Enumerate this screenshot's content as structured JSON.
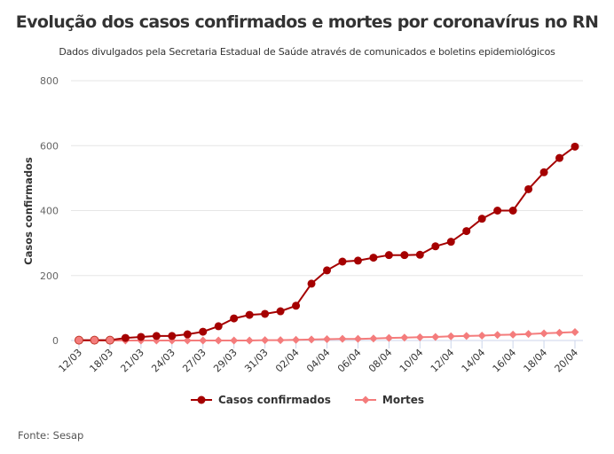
{
  "chart_data": {
    "type": "line",
    "title": "Evolução dos casos confirmados e mortes por coronavírus no RN",
    "subtitle": "Dados divulgados pela Secretaria Estadual de Saúde através de comunicados e boletins epidemiológicos",
    "xlabel": "",
    "ylabel": "Casos confirmados",
    "ylim": [
      0,
      800
    ],
    "yticks": [
      "0",
      "200",
      "400",
      "600",
      "800"
    ],
    "ytick_values": [
      0,
      200,
      400,
      600,
      800
    ],
    "grid": true,
    "x_tick_labels": [
      "12/03",
      "18/03",
      "21/03",
      "24/03",
      "27/03",
      "29/03",
      "31/03",
      "02/04",
      "04/04",
      "06/04",
      "08/04",
      "10/04",
      "12/04",
      "14/04",
      "16/04",
      "18/04",
      "20/04"
    ],
    "point_count": 33,
    "label_every": 2,
    "series": [
      {
        "name": "Casos confirmados",
        "color": "#a50000",
        "marker": "circle",
        "values": [
          1,
          1,
          1,
          8,
          11,
          14,
          14,
          19,
          27,
          44,
          68,
          79,
          82,
          90,
          107,
          175,
          216,
          243,
          246,
          255,
          263,
          263,
          264,
          290,
          304,
          337,
          375,
          400,
          400,
          466,
          518,
          562,
          597
        ]
      },
      {
        "name": "Mortes",
        "color": "#f47c7c",
        "marker": "diamond",
        "values": [
          0,
          0,
          0,
          0,
          0,
          0,
          0,
          0,
          0,
          0,
          0,
          0,
          1,
          1,
          2,
          3,
          4,
          5,
          5,
          6,
          8,
          9,
          10,
          11,
          13,
          14,
          15,
          17,
          18,
          20,
          22,
          24,
          26
        ]
      }
    ],
    "legend_position": "bottom-center",
    "source": "Fonte: Sesap"
  }
}
